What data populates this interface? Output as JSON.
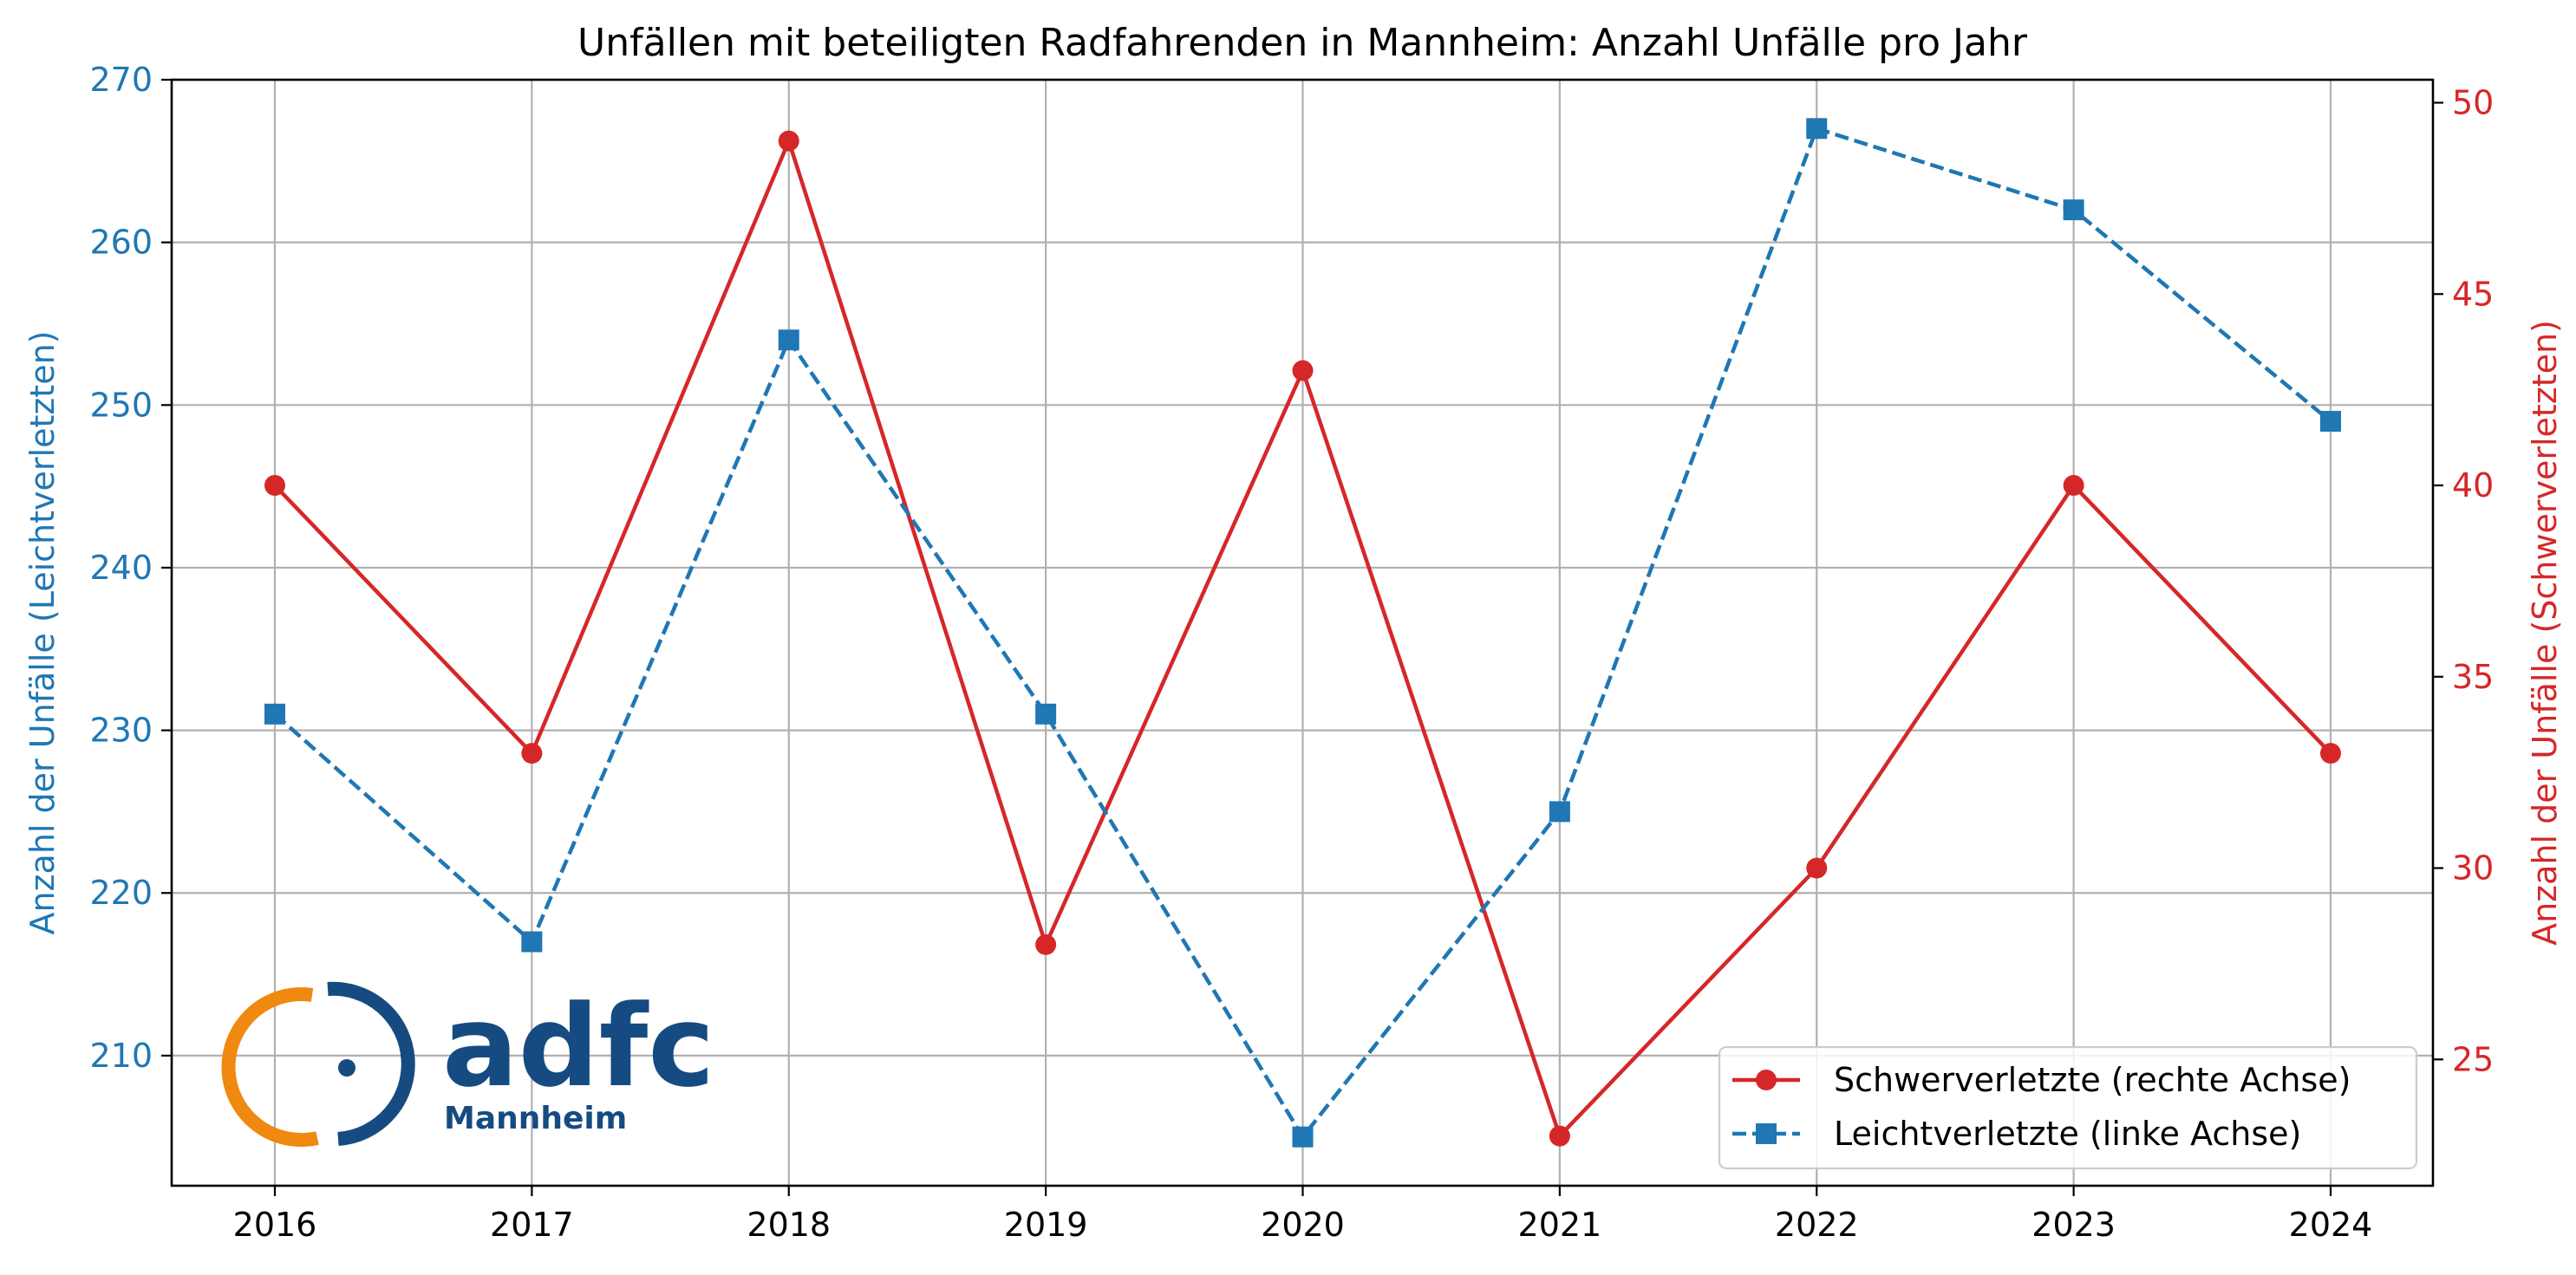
{
  "chart_data": {
    "type": "line",
    "title": "Unfällen mit beteiligten Radfahrenden in Mannheim: Anzahl Unfälle pro Jahr",
    "x": [
      "2016",
      "2017",
      "2018",
      "2019",
      "2020",
      "2021",
      "2022",
      "2023",
      "2024"
    ],
    "left_axis": {
      "label": "Anzahl der Unfälle (Leichtverletzten)",
      "ticks": [
        210,
        220,
        230,
        240,
        250,
        260,
        270
      ],
      "ylim": [
        202,
        270
      ],
      "color": "#1f77b4"
    },
    "right_axis": {
      "label": "Anzahl der Unfälle (Schwerverletzten)",
      "ticks": [
        25,
        30,
        35,
        40,
        45,
        50
      ],
      "ylim": [
        21.7,
        50.6
      ],
      "color": "#d62728"
    },
    "series": [
      {
        "name": "Schwerverletzte (rechte Achse)",
        "axis": "right",
        "color": "#d62728",
        "line_style": "solid",
        "marker": "circle",
        "values": [
          40,
          33,
          49,
          28,
          43,
          23,
          30,
          40,
          33
        ]
      },
      {
        "name": "Leichtverletzte (linke Achse)",
        "axis": "left",
        "color": "#1f77b4",
        "line_style": "dashed",
        "marker": "square",
        "values": [
          231,
          217,
          254,
          231,
          205,
          225,
          267,
          262,
          249
        ]
      }
    ],
    "grid": true,
    "legend_position": "bottom-right",
    "logo": {
      "text": "adfc",
      "subtext": "Mannheim",
      "ring_colors": [
        "#f0890f",
        "#164b82"
      ]
    }
  }
}
